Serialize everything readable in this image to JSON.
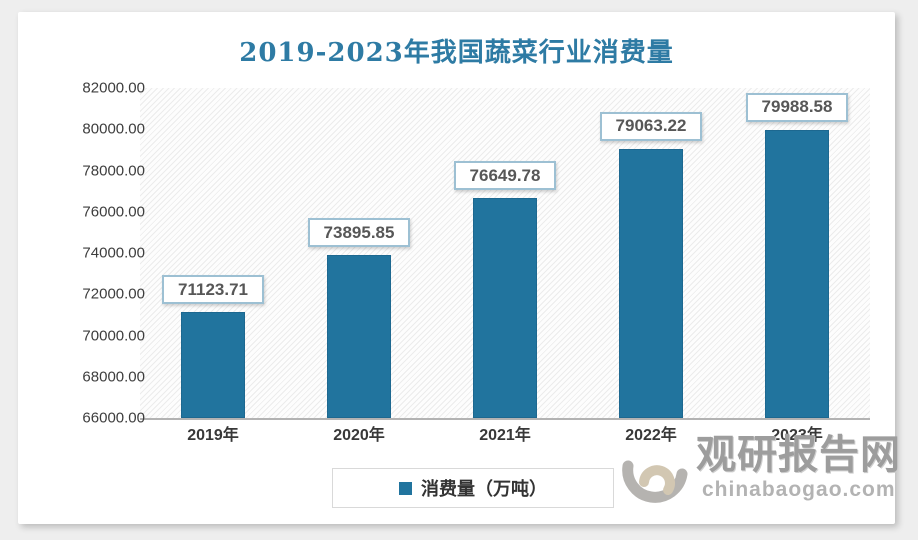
{
  "title": "2019-2023年我国蔬菜行业消费量",
  "chart_data": {
    "type": "bar",
    "title": "2019-2023年我国蔬菜行业消费量",
    "categories": [
      "2019年",
      "2020年",
      "2021年",
      "2022年",
      "2023年"
    ],
    "series": [
      {
        "name": "消费量（万吨）",
        "values": [
          71123.71,
          73895.85,
          76649.78,
          79063.22,
          79988.58
        ]
      }
    ],
    "data_labels": [
      "71123.71",
      "73895.85",
      "76649.78",
      "79063.22",
      "79988.58"
    ],
    "yticks": [
      "82000.00",
      "80000.00",
      "78000.00",
      "76000.00",
      "74000.00",
      "72000.00",
      "70000.00",
      "68000.00",
      "66000.00"
    ],
    "ylim": [
      66000,
      82000
    ],
    "ytick_step": 2000,
    "grid": false,
    "legend_position": "bottom",
    "bar_color": "#21749e",
    "xlabel": "",
    "ylabel": ""
  },
  "legend": {
    "label": "消费量（万吨）"
  },
  "watermark": {
    "site_name": "观研报告网",
    "site_url": "chinabaogao.com"
  },
  "colors": {
    "title": "#2e7ba4",
    "bar": "#21749e",
    "label_box_border": "#9dc0d3",
    "axis_line": "#b3b3b3",
    "page_background": "#eeeeee",
    "card_background": "#ffffff",
    "watermark_gray": "#9d9d9d"
  }
}
